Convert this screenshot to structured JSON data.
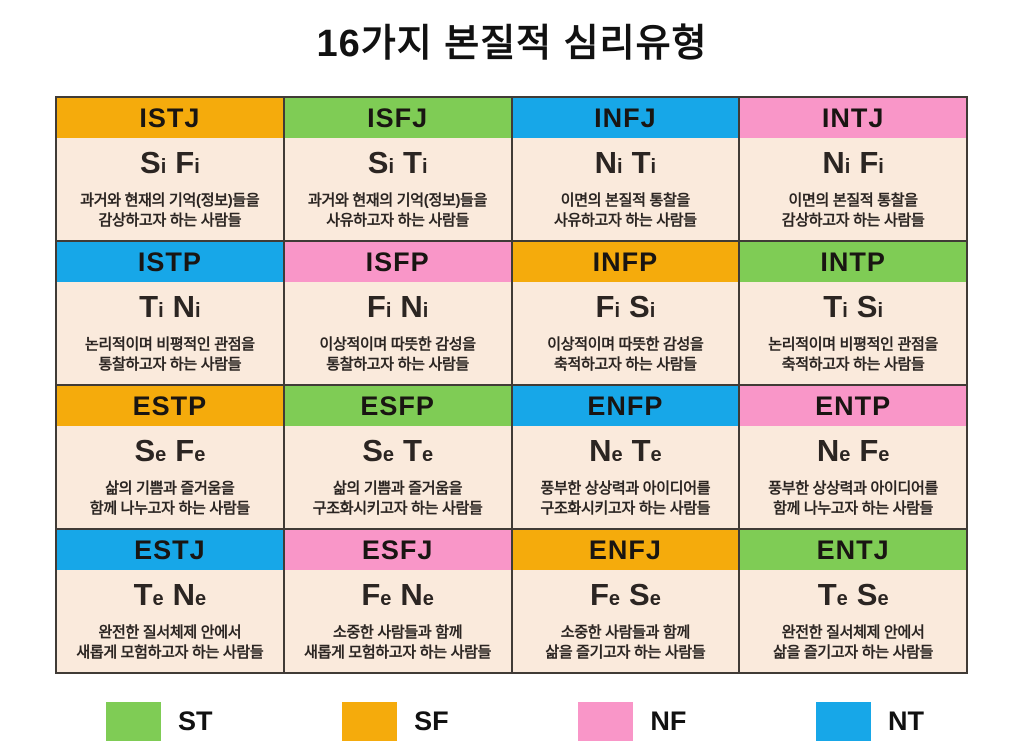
{
  "title": "16가지 본질적 심리유형",
  "colors": {
    "st_green": "#7FCC55",
    "sf_orange": "#F5AB0C",
    "nf_pink": "#F996C8",
    "nt_blue": "#17A7E8",
    "cell_background": "#FAEADC",
    "grid_line": "#403B36"
  },
  "grid": {
    "cells": [
      {
        "type": "ISTJ",
        "header_color": "#F5AB0C",
        "functions": [
          "Si",
          "Fi"
        ],
        "description": "과거와 현재의 기억(정보)들을\n감상하고자 하는 사람들"
      },
      {
        "type": "ISFJ",
        "header_color": "#7FCC55",
        "functions": [
          "Si",
          "Ti"
        ],
        "description": "과거와 현재의 기억(정보)들을\n사유하고자 하는 사람들"
      },
      {
        "type": "INFJ",
        "header_color": "#17A7E8",
        "functions": [
          "Ni",
          "Ti"
        ],
        "description": "이면의 본질적 통찰을\n사유하고자 하는 사람들"
      },
      {
        "type": "INTJ",
        "header_color": "#F996C8",
        "functions": [
          "Ni",
          "Fi"
        ],
        "description": "이면의 본질적 통찰을\n감상하고자 하는 사람들"
      },
      {
        "type": "ISTP",
        "header_color": "#17A7E8",
        "functions": [
          "Ti",
          "Ni"
        ],
        "description": "논리적이며 비평적인 관점을\n통찰하고자 하는 사람들"
      },
      {
        "type": "ISFP",
        "header_color": "#F996C8",
        "functions": [
          "Fi",
          "Ni"
        ],
        "description": "이상적이며 따뜻한 감성을\n통찰하고자 하는 사람들"
      },
      {
        "type": "INFP",
        "header_color": "#F5AB0C",
        "functions": [
          "Fi",
          "Si"
        ],
        "description": "이상적이며 따뜻한 감성을\n축적하고자 하는 사람들"
      },
      {
        "type": "INTP",
        "header_color": "#7FCC55",
        "functions": [
          "Ti",
          "Si"
        ],
        "description": "논리적이며 비평적인 관점을\n축적하고자 하는 사람들"
      },
      {
        "type": "ESTP",
        "header_color": "#F5AB0C",
        "functions": [
          "Se",
          "Fe"
        ],
        "description": "삶의 기쁨과 즐거움을\n함께 나누고자 하는 사람들"
      },
      {
        "type": "ESFP",
        "header_color": "#7FCC55",
        "functions": [
          "Se",
          "Te"
        ],
        "description": "삶의 기쁨과 즐거움을\n구조화시키고자 하는 사람들"
      },
      {
        "type": "ENFP",
        "header_color": "#17A7E8",
        "functions": [
          "Ne",
          "Te"
        ],
        "description": "풍부한 상상력과 아이디어를\n구조화시키고자 하는 사람들"
      },
      {
        "type": "ENTP",
        "header_color": "#F996C8",
        "functions": [
          "Ne",
          "Fe"
        ],
        "description": "풍부한 상상력과 아이디어를\n함께 나누고자 하는 사람들"
      },
      {
        "type": "ESTJ",
        "header_color": "#17A7E8",
        "functions": [
          "Te",
          "Ne"
        ],
        "description": "완전한 질서체제 안에서\n새롭게 모험하고자 하는 사람들"
      },
      {
        "type": "ESFJ",
        "header_color": "#F996C8",
        "functions": [
          "Fe",
          "Ne"
        ],
        "description": "소중한 사람들과 함께\n새롭게 모험하고자 하는 사람들"
      },
      {
        "type": "ENFJ",
        "header_color": "#F5AB0C",
        "functions": [
          "Fe",
          "Se"
        ],
        "description": "소중한 사람들과 함께\n삶을 즐기고자 하는 사람들"
      },
      {
        "type": "ENTJ",
        "header_color": "#7FCC55",
        "functions": [
          "Te",
          "Se"
        ],
        "description": "완전한 질서체제 안에서\n삶을 즐기고자 하는 사람들"
      }
    ]
  },
  "legend": {
    "items": [
      {
        "label": "ST",
        "color": "#7FCC55"
      },
      {
        "label": "SF",
        "color": "#F5AB0C"
      },
      {
        "label": "NF",
        "color": "#F996C8"
      },
      {
        "label": "NT",
        "color": "#17A7E8"
      }
    ]
  }
}
